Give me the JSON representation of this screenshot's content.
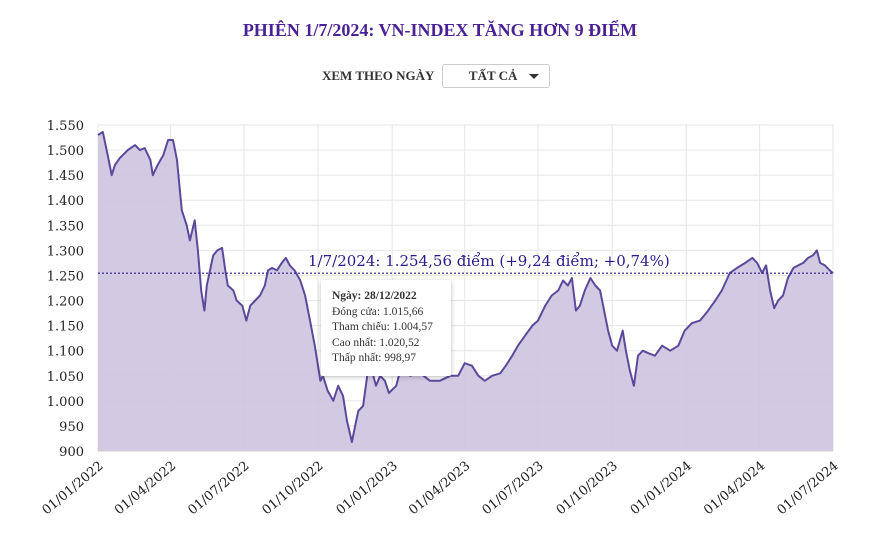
{
  "header": {
    "title": "PHIÊN 1/7/2024: VN-INDEX TĂNG HƠN 9 ĐIỂM"
  },
  "filter": {
    "label": "XEM THEO NGÀY",
    "selected": "TẤT CẢ",
    "icon": "caret-down-icon"
  },
  "reference": {
    "value": 1254.56,
    "label": "1/7/2024: 1.254,56 điểm (+9,24 điểm; +0,74%)",
    "color": "#2a1b8f"
  },
  "tooltip": {
    "date": "Ngày: 28/12/2022",
    "close": "Đóng cửa: 1.015,66",
    "ref": "Tham chiếu: 1.004,57",
    "high": "Cao nhất: 1.020,52",
    "low": "Thấp nhất: 998,97"
  },
  "chart_data": {
    "type": "area",
    "title": "PHIÊN 1/7/2024: VN-INDEX TĂNG HƠN 9 ĐIỂM",
    "xlim": [
      "2022-01-01",
      "2024-07-01"
    ],
    "ylim": [
      900,
      1550
    ],
    "grid": true,
    "line_color": "#5b4a9b",
    "fill_color": "#cdc4df",
    "y_ticks": [
      "900",
      "950",
      "1.000",
      "1.050",
      "1.100",
      "1.150",
      "1.200",
      "1.250",
      "1.300",
      "1.350",
      "1.400",
      "1.450",
      "1.500",
      "1.550"
    ],
    "x_ticks": [
      [
        "2022-01-01",
        "01/01/2022"
      ],
      [
        "2022-04-01",
        "01/04/2022"
      ],
      [
        "2022-07-01",
        "01/07/2022"
      ],
      [
        "2022-10-01",
        "01/10/2022"
      ],
      [
        "2023-01-01",
        "01/01/2023"
      ],
      [
        "2023-04-01",
        "01/04/2023"
      ],
      [
        "2023-07-01",
        "01/07/2023"
      ],
      [
        "2023-10-01",
        "01/10/2023"
      ],
      [
        "2024-01-01",
        "01/01/2024"
      ],
      [
        "2024-04-01",
        "01/04/2024"
      ],
      [
        "2024-07-01",
        "01/07/2024"
      ]
    ],
    "series": [
      {
        "points": [
          [
            "2022-01-01",
            1530
          ],
          [
            "2022-01-07",
            1536
          ],
          [
            "2022-01-13",
            1490
          ],
          [
            "2022-01-18",
            1450
          ],
          [
            "2022-01-22",
            1470
          ],
          [
            "2022-01-28",
            1484
          ],
          [
            "2022-02-07",
            1500
          ],
          [
            "2022-02-16",
            1510
          ],
          [
            "2022-02-22",
            1500
          ],
          [
            "2022-02-28",
            1504
          ],
          [
            "2022-03-07",
            1480
          ],
          [
            "2022-03-10",
            1450
          ],
          [
            "2022-03-16",
            1470
          ],
          [
            "2022-03-23",
            1490
          ],
          [
            "2022-03-29",
            1520
          ],
          [
            "2022-04-04",
            1520
          ],
          [
            "2022-04-09",
            1480
          ],
          [
            "2022-04-15",
            1380
          ],
          [
            "2022-04-21",
            1350
          ],
          [
            "2022-04-25",
            1320
          ],
          [
            "2022-05-01",
            1360
          ],
          [
            "2022-05-05",
            1300
          ],
          [
            "2022-05-09",
            1220
          ],
          [
            "2022-05-13",
            1180
          ],
          [
            "2022-05-16",
            1230
          ],
          [
            "2022-05-20",
            1260
          ],
          [
            "2022-05-24",
            1290
          ],
          [
            "2022-05-29",
            1300
          ],
          [
            "2022-06-04",
            1305
          ],
          [
            "2022-06-08",
            1260
          ],
          [
            "2022-06-11",
            1230
          ],
          [
            "2022-06-18",
            1220
          ],
          [
            "2022-06-22",
            1200
          ],
          [
            "2022-06-29",
            1190
          ],
          [
            "2022-07-04",
            1160
          ],
          [
            "2022-07-09",
            1190
          ],
          [
            "2022-07-15",
            1200
          ],
          [
            "2022-07-21",
            1210
          ],
          [
            "2022-07-27",
            1230
          ],
          [
            "2022-07-31",
            1260
          ],
          [
            "2022-08-05",
            1265
          ],
          [
            "2022-08-11",
            1260
          ],
          [
            "2022-08-17",
            1275
          ],
          [
            "2022-08-22",
            1285
          ],
          [
            "2022-08-27",
            1270
          ],
          [
            "2022-09-02",
            1260
          ],
          [
            "2022-09-09",
            1240
          ],
          [
            "2022-09-15",
            1210
          ],
          [
            "2022-09-21",
            1160
          ],
          [
            "2022-09-27",
            1110
          ],
          [
            "2022-10-04",
            1040
          ],
          [
            "2022-10-07",
            1050
          ],
          [
            "2022-10-13",
            1020
          ],
          [
            "2022-10-20",
            1000
          ],
          [
            "2022-10-26",
            1030
          ],
          [
            "2022-11-01",
            1010
          ],
          [
            "2022-11-06",
            960
          ],
          [
            "2022-11-12",
            918
          ],
          [
            "2022-11-16",
            950
          ],
          [
            "2022-11-20",
            980
          ],
          [
            "2022-11-26",
            990
          ],
          [
            "2022-12-01",
            1050
          ],
          [
            "2022-12-07",
            1060
          ],
          [
            "2022-12-12",
            1030
          ],
          [
            "2022-12-17",
            1050
          ],
          [
            "2022-12-23",
            1040
          ],
          [
            "2022-12-28",
            1015.66
          ],
          [
            "2023-01-06",
            1030
          ],
          [
            "2023-01-11",
            1060
          ],
          [
            "2023-01-17",
            1070
          ],
          [
            "2023-01-23",
            1050
          ],
          [
            "2023-02-05",
            1055
          ],
          [
            "2023-02-17",
            1040
          ],
          [
            "2023-03-01",
            1040
          ],
          [
            "2023-03-14",
            1050
          ],
          [
            "2023-03-24",
            1050
          ],
          [
            "2023-04-01",
            1075
          ],
          [
            "2023-04-10",
            1070
          ],
          [
            "2023-04-18",
            1050
          ],
          [
            "2023-04-26",
            1040
          ],
          [
            "2023-05-05",
            1050
          ],
          [
            "2023-05-15",
            1055
          ],
          [
            "2023-05-22",
            1070
          ],
          [
            "2023-05-30",
            1090
          ],
          [
            "2023-06-06",
            1110
          ],
          [
            "2023-06-15",
            1130
          ],
          [
            "2023-06-24",
            1150
          ],
          [
            "2023-07-01",
            1160
          ],
          [
            "2023-07-10",
            1190
          ],
          [
            "2023-07-18",
            1210
          ],
          [
            "2023-07-26",
            1220
          ],
          [
            "2023-08-01",
            1240
          ],
          [
            "2023-08-07",
            1230
          ],
          [
            "2023-08-12",
            1245
          ],
          [
            "2023-08-17",
            1180
          ],
          [
            "2023-08-22",
            1190
          ],
          [
            "2023-08-28",
            1220
          ],
          [
            "2023-09-04",
            1245
          ],
          [
            "2023-09-10",
            1230
          ],
          [
            "2023-09-16",
            1220
          ],
          [
            "2023-09-21",
            1180
          ],
          [
            "2023-09-26",
            1140
          ],
          [
            "2023-10-01",
            1110
          ],
          [
            "2023-10-07",
            1100
          ],
          [
            "2023-10-14",
            1140
          ],
          [
            "2023-10-18",
            1100
          ],
          [
            "2023-10-23",
            1060
          ],
          [
            "2023-10-28",
            1030
          ],
          [
            "2023-11-02",
            1090
          ],
          [
            "2023-11-08",
            1100
          ],
          [
            "2023-11-15",
            1095
          ],
          [
            "2023-11-23",
            1090
          ],
          [
            "2023-12-02",
            1110
          ],
          [
            "2023-12-12",
            1100
          ],
          [
            "2023-12-22",
            1110
          ],
          [
            "2023-12-30",
            1140
          ],
          [
            "2024-01-08",
            1155
          ],
          [
            "2024-01-18",
            1160
          ],
          [
            "2024-01-28",
            1180
          ],
          [
            "2024-02-06",
            1200
          ],
          [
            "2024-02-14",
            1220
          ],
          [
            "2024-02-24",
            1255
          ],
          [
            "2024-03-04",
            1265
          ],
          [
            "2024-03-14",
            1275
          ],
          [
            "2024-03-23",
            1285
          ],
          [
            "2024-03-29",
            1275
          ],
          [
            "2024-04-04",
            1255
          ],
          [
            "2024-04-09",
            1270
          ],
          [
            "2024-04-14",
            1220
          ],
          [
            "2024-04-19",
            1185
          ],
          [
            "2024-04-24",
            1200
          ],
          [
            "2024-04-30",
            1210
          ],
          [
            "2024-05-06",
            1245
          ],
          [
            "2024-05-13",
            1265
          ],
          [
            "2024-05-19",
            1270
          ],
          [
            "2024-05-25",
            1275
          ],
          [
            "2024-05-31",
            1285
          ],
          [
            "2024-06-06",
            1290
          ],
          [
            "2024-06-11",
            1300
          ],
          [
            "2024-06-15",
            1275
          ],
          [
            "2024-06-21",
            1270
          ],
          [
            "2024-06-27",
            1260
          ],
          [
            "2024-07-01",
            1254.56
          ]
        ]
      }
    ]
  }
}
